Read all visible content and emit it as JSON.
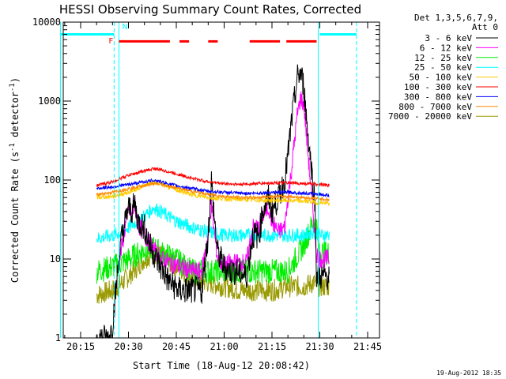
{
  "chart_data": {
    "type": "line",
    "title": "HESSI Observing Summary Count Rates, Corrected",
    "xlabel": "Start Time (18-Aug-12 20:08:42)",
    "ylabel": "Corrected Count Rate (s⁻¹ detector⁻¹)",
    "ylabel_parts": [
      "Corrected Count Rate (s",
      "-1",
      " detector",
      "-1",
      ")"
    ],
    "x_range_min": [
      8.7,
      47.5
    ],
    "x_ticks": [
      {
        "label": "20:15",
        "value": 15
      },
      {
        "label": "20:30",
        "value": 30
      },
      {
        "label": "20:45",
        "value": 45
      },
      {
        "label": "21:00",
        "value": 60
      },
      {
        "label": "21:15",
        "value": 75
      },
      {
        "label": "21:30",
        "value": 90
      },
      {
        "label": "21:45",
        "value": 105
      }
    ],
    "y_scale": "log",
    "ylim": [
      1,
      10000
    ],
    "y_ticks": [
      {
        "label": "1",
        "value": 1
      },
      {
        "label": "10",
        "value": 10
      },
      {
        "label": "100",
        "value": 100
      },
      {
        "label": "1000",
        "value": 1000
      },
      {
        "label": "10000",
        "value": 10000
      }
    ],
    "legend_header": [
      "Det 1,3,5,6,7,9,",
      "Att 0"
    ],
    "legend_position": "outside-right",
    "series": [
      {
        "name": "3 - 6 keV",
        "color": "#000000",
        "x": [
          20,
          24,
          25,
          27,
          28,
          30,
          31,
          32,
          33,
          35,
          37,
          40,
          43,
          46,
          50,
          53,
          55,
          56,
          57,
          58,
          60,
          62,
          64,
          67,
          69,
          71,
          72,
          74,
          75,
          77,
          79,
          80,
          81,
          82,
          83,
          84,
          85,
          86,
          87,
          88.5,
          89,
          90,
          93
        ],
        "y": [
          1,
          1,
          1.5,
          10,
          20,
          45,
          40,
          50,
          30,
          25,
          14,
          8,
          5,
          4,
          4,
          4,
          20,
          100,
          30,
          12,
          8,
          7,
          7,
          6,
          20,
          20,
          40,
          60,
          40,
          60,
          100,
          200,
          500,
          1000,
          2000,
          2300,
          1500,
          500,
          200,
          50,
          6,
          6,
          6
        ]
      },
      {
        "name": "6 - 12 keV",
        "color": "#ff00ff",
        "x": [
          27,
          28,
          30,
          31,
          32,
          33,
          35,
          37,
          40,
          43,
          46,
          50,
          53,
          55,
          56,
          57,
          58,
          60,
          62,
          64,
          67,
          69,
          71,
          72,
          74,
          75,
          77,
          79,
          80,
          81,
          82,
          83,
          84,
          85,
          86,
          87,
          88.5,
          89,
          90,
          93
        ],
        "y": [
          9,
          15,
          45,
          35,
          50,
          28,
          20,
          15,
          10,
          9,
          8,
          7,
          7,
          20,
          50,
          20,
          10,
          8,
          9,
          9,
          9,
          25,
          25,
          35,
          45,
          30,
          22,
          25,
          60,
          120,
          300,
          700,
          1100,
          900,
          300,
          100,
          20,
          12,
          10,
          10
        ]
      },
      {
        "name": "12 - 25 keV",
        "color": "#00ee00",
        "x": [
          20,
          25,
          28,
          30,
          35,
          38,
          40,
          45,
          48,
          50,
          55,
          60,
          65,
          70,
          75,
          80,
          85,
          88,
          89,
          90,
          93
        ],
        "y": [
          7,
          8,
          9,
          10,
          13,
          14,
          12,
          10,
          8,
          7,
          7,
          7,
          7,
          7,
          7,
          7,
          15,
          30,
          25,
          12,
          12
        ]
      },
      {
        "name": "25 - 50 keV",
        "color": "#00ffff",
        "x": [
          20,
          25,
          28,
          30,
          35,
          38,
          40,
          45,
          50,
          55,
          60,
          65,
          70,
          75,
          80,
          85,
          88,
          90,
          93
        ],
        "y": [
          18,
          20,
          22,
          25,
          35,
          45,
          40,
          30,
          25,
          22,
          20,
          20,
          20,
          20,
          20,
          20,
          22,
          20,
          20
        ]
      },
      {
        "name": "50 - 100 keV",
        "color": "#ffcc00",
        "x": [
          20,
          25,
          30,
          35,
          38,
          40,
          45,
          50,
          55,
          60,
          65,
          70,
          75,
          80,
          85,
          90,
          93
        ],
        "y": [
          60,
          62,
          70,
          85,
          95,
          90,
          75,
          65,
          60,
          58,
          57,
          56,
          55,
          55,
          54,
          52,
          50
        ]
      },
      {
        "name": "100 - 300 keV",
        "color": "#ff0000",
        "x": [
          20,
          25,
          30,
          35,
          38,
          40,
          45,
          50,
          55,
          60,
          65,
          70,
          75,
          80,
          85,
          90,
          93
        ],
        "y": [
          85,
          95,
          115,
          130,
          140,
          135,
          120,
          105,
          95,
          90,
          88,
          90,
          92,
          92,
          90,
          88,
          85
        ]
      },
      {
        "name": "300 - 800 keV",
        "color": "#0000ff",
        "x": [
          20,
          25,
          30,
          35,
          38,
          40,
          45,
          50,
          55,
          60,
          65,
          70,
          75,
          80,
          85,
          90,
          93
        ],
        "y": [
          78,
          82,
          88,
          95,
          100,
          95,
          85,
          78,
          72,
          70,
          68,
          68,
          70,
          70,
          68,
          66,
          64
        ]
      },
      {
        "name": "800 - 7000 keV",
        "color": "#ff8800",
        "x": [
          20,
          25,
          30,
          35,
          38,
          40,
          45,
          50,
          55,
          60,
          65,
          70,
          75,
          80,
          85,
          90,
          93
        ],
        "y": [
          65,
          70,
          78,
          85,
          90,
          88,
          80,
          72,
          66,
          62,
          60,
          60,
          62,
          62,
          60,
          58,
          56
        ]
      },
      {
        "name": "7000 - 20000 keV",
        "color": "#999900",
        "x": [
          20,
          25,
          28,
          30,
          35,
          38,
          40,
          45,
          50,
          55,
          60,
          65,
          70,
          75,
          80,
          85,
          88,
          90,
          93
        ],
        "y": [
          3.5,
          4,
          5,
          6,
          10,
          12,
          11,
          8,
          6,
          5,
          4.5,
          4,
          4,
          4,
          4.5,
          4.5,
          5,
          4.5,
          4.5
        ]
      }
    ],
    "markers": {
      "attenuator_line": {
        "color": "#00ffff",
        "y": 7000,
        "segments": [
          [
            8.7,
            25.5
          ],
          [
            90,
            101.5
          ]
        ]
      },
      "verticals": [
        {
          "x": 8.7,
          "color": "#00ffff",
          "style": "solid"
        },
        {
          "x": 25.5,
          "color": "#00ffff",
          "style": "dashed"
        },
        {
          "x": 27.0,
          "color": "#00ffff",
          "style": "solid"
        },
        {
          "x": 89.5,
          "color": "#00ffff",
          "style": "solid"
        },
        {
          "x": 101.5,
          "color": "#00ffff",
          "style": "dashed"
        }
      ],
      "flags_line": {
        "color": "#ff0000",
        "y": 5700,
        "segments": [
          [
            27,
            43
          ],
          [
            46,
            49
          ],
          [
            55,
            58
          ],
          [
            68,
            77.5
          ],
          [
            79.5,
            89
          ]
        ]
      },
      "labels": [
        {
          "text": "F",
          "x": 23.8,
          "y": 5400,
          "color": "#ff0000"
        },
        {
          "text": "N",
          "x": 28.0,
          "y": 8100,
          "color": "#00ffff"
        }
      ]
    }
  },
  "timestamp": "19-Aug-2012 18:35"
}
